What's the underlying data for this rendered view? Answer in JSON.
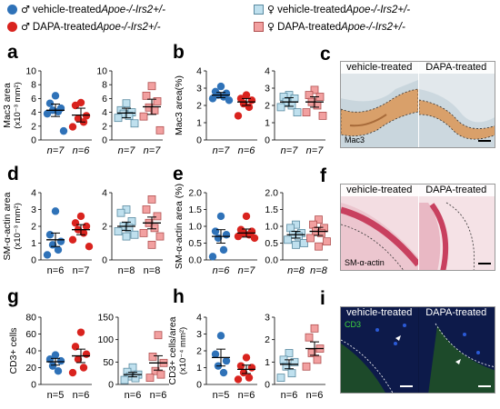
{
  "legend": [
    {
      "sex": "♂",
      "prefix": "vehicle-treated ",
      "genotype": "Apoe-/-Irs2+/-",
      "color": "#2f72b8",
      "shape": "circle"
    },
    {
      "sex": "♂",
      "prefix": "DAPA-treated ",
      "genotype": "Apoe-/-Irs2+/-",
      "color": "#d9231e",
      "shape": "circle"
    },
    {
      "sex": "♀",
      "prefix": "vehicle-treated ",
      "genotype": "Apoe-/-Irs2+/-",
      "color": "#bfe0ee",
      "shape": "square"
    },
    {
      "sex": "♀",
      "prefix": "DAPA-treated ",
      "genotype": "Apoe-/-Irs2+/-",
      "color": "#f2a0a0",
      "shape": "square"
    }
  ],
  "panel_letters": {
    "a": "a",
    "b": "b",
    "c": "c",
    "d": "d",
    "e": "e",
    "f": "f",
    "g": "g",
    "h": "h",
    "i": "i"
  },
  "colors": {
    "male_vehicle": "#2f72b8",
    "male_dapa": "#d9231e",
    "female_vehicle": "#bfe0ee",
    "female_dapa": "#f2a0a0"
  },
  "images": {
    "c": {
      "titles": [
        "vehicle-treated",
        "DAPA-treated"
      ],
      "stain": "Mac3"
    },
    "f": {
      "titles": [
        "vehicle-treated",
        "DAPA-treated"
      ],
      "stain": "SM-α-actin"
    },
    "i": {
      "titles": [
        "vehicle-treated",
        "DAPA-treated"
      ],
      "stain": "CD3"
    }
  },
  "chart_data": [
    {
      "id": "a-male",
      "type": "scatter",
      "ylabel": "Mac3 area",
      "ylabel2": "(x10⁻³ mm²)",
      "ylim": [
        0,
        10
      ],
      "yticks": [
        0,
        2,
        4,
        6,
        8,
        10
      ],
      "groups": [
        {
          "label": "n=7",
          "italic": true,
          "key": "male_vehicle",
          "mean": 4.3,
          "sem": 0.9,
          "values": [
            6.4,
            5.3,
            4.6,
            4.3,
            4.1,
            3.8,
            1.3
          ]
        },
        {
          "label": "n=6",
          "italic": true,
          "key": "male_dapa",
          "mean": 3.6,
          "sem": 1.0,
          "values": [
            5.4,
            5.0,
            3.5,
            3.1,
            2.6,
            1.9
          ]
        }
      ]
    },
    {
      "id": "a-female",
      "type": "scatter",
      "ylim": [
        0,
        10
      ],
      "yticks": [
        0,
        2,
        4,
        6,
        8,
        10
      ],
      "groups": [
        {
          "label": "n=7",
          "italic": true,
          "key": "female_vehicle",
          "mean": 3.9,
          "sem": 0.7,
          "values": [
            5.3,
            4.3,
            4.0,
            3.8,
            3.5,
            3.2,
            2.4
          ]
        },
        {
          "label": "n=7",
          "italic": true,
          "key": "female_dapa",
          "mean": 4.8,
          "sem": 1.1,
          "values": [
            7.8,
            6.4,
            5.6,
            4.7,
            4.3,
            3.4,
            1.4
          ]
        }
      ]
    },
    {
      "id": "b-male",
      "type": "scatter",
      "ylabel": "Mac3 area(%)",
      "ylim": [
        0,
        4
      ],
      "yticks": [
        0,
        1,
        2,
        3,
        4
      ],
      "groups": [
        {
          "label": "n=7",
          "italic": true,
          "key": "male_vehicle",
          "mean": 2.6,
          "sem": 0.15,
          "values": [
            3.1,
            2.8,
            2.7,
            2.6,
            2.5,
            2.4,
            2.3
          ]
        },
        {
          "label": "n=6",
          "italic": true,
          "key": "male_dapa",
          "mean": 2.2,
          "sem": 0.2,
          "values": [
            2.6,
            2.4,
            2.3,
            2.1,
            1.9,
            1.4
          ]
        }
      ]
    },
    {
      "id": "b-female",
      "type": "scatter",
      "ylim": [
        0,
        4
      ],
      "yticks": [
        0,
        1,
        2,
        3,
        4
      ],
      "groups": [
        {
          "label": "n=7",
          "italic": true,
          "key": "female_vehicle",
          "mean": 2.2,
          "sem": 0.25,
          "values": [
            2.6,
            2.5,
            2.4,
            2.2,
            2.0,
            1.9,
            1.6
          ]
        },
        {
          "label": "n=7",
          "italic": true,
          "key": "female_dapa",
          "mean": 2.2,
          "sem": 0.3,
          "values": [
            2.9,
            2.6,
            2.5,
            2.2,
            2.0,
            1.6,
            1.4
          ]
        }
      ]
    },
    {
      "id": "d-male",
      "type": "scatter",
      "ylabel": "SM-α-actin area",
      "ylabel2": "(x10⁻³ mm²)",
      "ylim": [
        0,
        4
      ],
      "yticks": [
        0,
        1,
        2,
        3,
        4
      ],
      "groups": [
        {
          "label": "n=6",
          "italic": false,
          "key": "male_vehicle",
          "mean": 1.2,
          "sem": 0.4,
          "values": [
            2.9,
            1.5,
            1.1,
            0.9,
            0.6,
            0.3
          ]
        },
        {
          "label": "n=7",
          "italic": false,
          "key": "male_dapa",
          "mean": 1.8,
          "sem": 0.3,
          "values": [
            2.6,
            2.2,
            2.0,
            1.8,
            1.6,
            1.2,
            0.8
          ]
        }
      ]
    },
    {
      "id": "d-female",
      "type": "scatter",
      "ylim": [
        0,
        4
      ],
      "yticks": [
        0,
        2,
        4
      ],
      "groups": [
        {
          "label": "n=8",
          "italic": false,
          "key": "female_vehicle",
          "mean": 2.0,
          "sem": 0.25,
          "values": [
            3.0,
            2.8,
            2.3,
            2.0,
            1.9,
            1.7,
            1.5,
            1.4
          ]
        },
        {
          "label": "n=8",
          "italic": false,
          "key": "female_dapa",
          "mean": 2.2,
          "sem": 0.35,
          "values": [
            3.6,
            3.0,
            2.6,
            2.2,
            1.9,
            1.6,
            1.4,
            0.9
          ]
        }
      ]
    },
    {
      "id": "e-male",
      "type": "scatter",
      "ylabel": "SM-α-actin area (%)",
      "ylim": [
        0,
        2
      ],
      "yticks": [
        0.0,
        0.5,
        1.0,
        1.5,
        2.0
      ],
      "groups": [
        {
          "label": "n=6",
          "italic": true,
          "key": "male_vehicle",
          "mean": 0.7,
          "sem": 0.2,
          "values": [
            1.3,
            0.85,
            0.75,
            0.65,
            0.3,
            0.1
          ]
        },
        {
          "label": "n=7",
          "italic": true,
          "key": "male_dapa",
          "mean": 0.8,
          "sem": 0.12,
          "values": [
            1.3,
            0.9,
            0.85,
            0.8,
            0.75,
            0.7,
            0.65
          ]
        }
      ]
    },
    {
      "id": "e-female",
      "type": "scatter",
      "ylim": [
        0,
        2
      ],
      "yticks": [
        0.0,
        0.5,
        1.0,
        1.5,
        2.0
      ],
      "groups": [
        {
          "label": "n=8",
          "italic": true,
          "key": "female_vehicle",
          "mean": 0.75,
          "sem": 0.1,
          "values": [
            1.05,
            0.95,
            0.8,
            0.75,
            0.7,
            0.6,
            0.5,
            0.45
          ]
        },
        {
          "label": "n=8",
          "italic": true,
          "key": "female_dapa",
          "mean": 0.85,
          "sem": 0.12,
          "values": [
            1.2,
            1.05,
            0.95,
            0.85,
            0.8,
            0.65,
            0.55,
            0.4
          ]
        }
      ]
    },
    {
      "id": "g-male",
      "type": "scatter",
      "ylabel": "CD3+ cells",
      "ylim": [
        0,
        80
      ],
      "yticks": [
        0,
        20,
        40,
        60,
        80
      ],
      "groups": [
        {
          "label": "n=5",
          "italic": false,
          "key": "male_vehicle",
          "mean": 27,
          "sem": 4,
          "values": [
            35,
            30,
            28,
            22,
            16
          ]
        },
        {
          "label": "n=6",
          "italic": false,
          "key": "male_dapa",
          "mean": 34,
          "sem": 8,
          "values": [
            62,
            45,
            36,
            30,
            20,
            14
          ]
        }
      ]
    },
    {
      "id": "g-female",
      "type": "scatter",
      "ylim": [
        0,
        150
      ],
      "yticks": [
        0,
        50,
        100,
        150
      ],
      "groups": [
        {
          "label": "n=6",
          "italic": false,
          "key": "female_vehicle",
          "mean": 22,
          "sem": 5,
          "values": [
            38,
            28,
            22,
            18,
            14,
            10
          ]
        },
        {
          "label": "n=6",
          "italic": false,
          "key": "female_dapa",
          "mean": 48,
          "sem": 16,
          "values": [
            110,
            62,
            48,
            30,
            22,
            15
          ]
        }
      ]
    },
    {
      "id": "h-male",
      "type": "scatter",
      "ylabel": "CD3+ cells/area",
      "ylabel2": "(x10⁻⁴ mm²)",
      "ylim": [
        0,
        4
      ],
      "yticks": [
        0,
        1,
        2,
        3,
        4
      ],
      "groups": [
        {
          "label": "n=5",
          "italic": false,
          "key": "male_vehicle",
          "mean": 1.6,
          "sem": 0.5,
          "values": [
            2.9,
            1.8,
            1.4,
            1.1,
            0.7
          ]
        },
        {
          "label": "n=6",
          "italic": false,
          "key": "male_dapa",
          "mean": 0.9,
          "sem": 0.25,
          "values": [
            1.6,
            1.1,
            1.0,
            0.7,
            0.4,
            0.3
          ]
        }
      ]
    },
    {
      "id": "h-female",
      "type": "scatter",
      "ylim": [
        0,
        3
      ],
      "yticks": [
        0,
        1,
        2,
        3
      ],
      "groups": [
        {
          "label": "n=6",
          "italic": false,
          "key": "female_vehicle",
          "mean": 0.9,
          "sem": 0.2,
          "values": [
            1.4,
            1.1,
            1.0,
            0.8,
            0.5,
            0.3
          ]
        },
        {
          "label": "n=6",
          "italic": false,
          "key": "female_dapa",
          "mean": 1.6,
          "sem": 0.3,
          "values": [
            2.5,
            2.1,
            1.6,
            1.4,
            1.1,
            0.8
          ]
        }
      ]
    }
  ]
}
